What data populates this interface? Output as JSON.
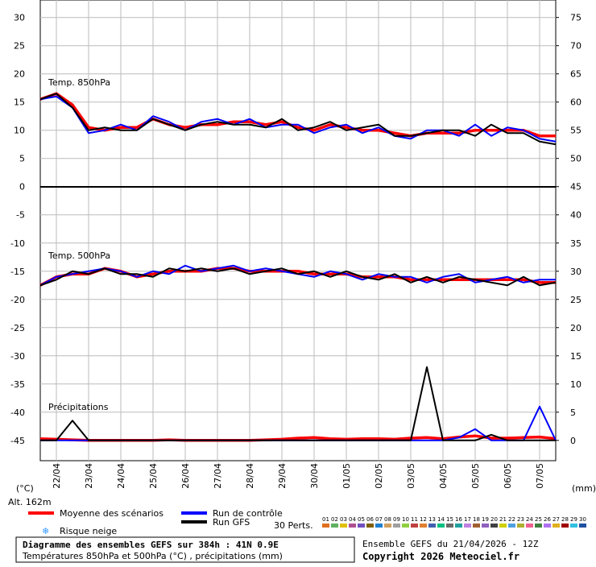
{
  "chart_data": {
    "type": "line",
    "x": [
      0,
      12,
      24,
      36,
      48,
      60,
      72,
      84,
      96,
      108,
      120,
      132,
      144,
      156,
      168,
      180,
      192,
      204,
      216,
      228,
      240,
      252,
      264,
      276,
      288,
      300,
      312,
      324,
      336,
      348,
      360,
      372,
      384
    ],
    "xlim": [
      0,
      384
    ],
    "xticks": [
      {
        "value": 12,
        "label": "22/04"
      },
      {
        "value": 36,
        "label": "23/04"
      },
      {
        "value": 60,
        "label": "24/04"
      },
      {
        "value": 84,
        "label": "25/04"
      },
      {
        "value": 108,
        "label": "26/04"
      },
      {
        "value": 132,
        "label": "27/04"
      },
      {
        "value": 156,
        "label": "28/04"
      },
      {
        "value": 180,
        "label": "29/04"
      },
      {
        "value": 204,
        "label": "30/04"
      },
      {
        "value": 228,
        "label": "01/05"
      },
      {
        "value": 252,
        "label": "02/05"
      },
      {
        "value": 276,
        "label": "03/05"
      },
      {
        "value": 300,
        "label": "04/05"
      },
      {
        "value": 324,
        "label": "05/05"
      },
      {
        "value": 348,
        "label": "06/05"
      },
      {
        "value": 372,
        "label": "07/05"
      }
    ],
    "ylim": [
      -48.6,
      33.1
    ],
    "yticks": [
      30,
      25,
      20,
      15,
      10,
      5,
      0,
      -5,
      -10,
      -15,
      -20,
      -25,
      -30,
      -35,
      -40,
      -45
    ],
    "y2lim": [
      -3.6,
      78.1
    ],
    "y2ticks": [
      75,
      70,
      65,
      60,
      55,
      50,
      45,
      40,
      35,
      30,
      25,
      20,
      15,
      10,
      5,
      0
    ],
    "grid": true,
    "y_unit": "(°C)",
    "y2_unit": "(mm)",
    "altitude": "Alt. 162m",
    "panels": [
      "Temp. 850hPa",
      "Temp. 500hPa",
      "Précipitations"
    ],
    "series": [
      {
        "name": "Moyenne des scénarios",
        "color": "#ff0000",
        "t850": [
          15.5,
          16.5,
          14.5,
          10.5,
          10,
          10.5,
          10.5,
          12,
          11,
          10.5,
          11,
          11,
          11.5,
          11.5,
          11,
          11.5,
          10.5,
          10,
          11,
          10.5,
          10,
          10,
          9.5,
          9,
          9.5,
          9.5,
          9.5,
          10,
          10,
          10,
          10,
          9,
          9
        ],
        "t500": [
          -17.5,
          -16,
          -15.5,
          -15.5,
          -14.5,
          -15,
          -16,
          -15.5,
          -15,
          -15,
          -15,
          -14.5,
          -14.5,
          -15,
          -15,
          -15,
          -15,
          -15.5,
          -15.5,
          -15.5,
          -16,
          -16,
          -16,
          -16.5,
          -16.5,
          -16.5,
          -16.5,
          -16.5,
          -16.5,
          -16.5,
          -16.5,
          -17,
          -17
        ],
        "precip": [
          0.3,
          0.2,
          0.1,
          0,
          0,
          0,
          0,
          0,
          0.1,
          0,
          0,
          0,
          0,
          0,
          0.1,
          0.2,
          0.4,
          0.5,
          0.3,
          0.2,
          0.3,
          0.3,
          0.2,
          0.4,
          0.5,
          0.3,
          0.6,
          0.8,
          0.4,
          0.4,
          0.5,
          0.6,
          0.3
        ]
      },
      {
        "name": "Run de contrôle",
        "color": "#0000ff",
        "t850": [
          15.5,
          16,
          14,
          9.5,
          10,
          11,
          10,
          12.5,
          11.5,
          10,
          11.5,
          12,
          11,
          12,
          10.5,
          11,
          11,
          9.5,
          10.5,
          11,
          9.5,
          10.5,
          9,
          8.5,
          10,
          10,
          9,
          11,
          9,
          10.5,
          10,
          8.5,
          8
        ],
        "t500": [
          -17.5,
          -16,
          -15.5,
          -15,
          -14.5,
          -15,
          -16,
          -15,
          -15.5,
          -14,
          -15,
          -14.5,
          -14,
          -15,
          -14.5,
          -15,
          -15.5,
          -16,
          -15,
          -15.5,
          -16.5,
          -15.5,
          -16,
          -16,
          -17,
          -16,
          -15.5,
          -17,
          -16.5,
          -16,
          -17,
          -16.5,
          -16.5
        ],
        "precip": [
          0,
          0,
          0,
          0,
          0,
          0,
          0,
          0,
          0,
          0,
          0,
          0,
          0,
          0,
          0,
          0,
          0,
          0,
          0,
          0,
          0,
          0,
          0,
          0,
          0,
          0,
          0.5,
          2,
          0,
          0,
          0,
          6,
          0
        ]
      },
      {
        "name": "Run GFS",
        "color": "#000000",
        "t850": [
          15.5,
          16.5,
          14,
          10,
          10.5,
          10,
          10,
          12,
          11,
          10,
          11,
          11.5,
          11,
          11,
          10.5,
          12,
          10,
          10.5,
          11.5,
          10,
          10.5,
          11,
          9,
          9,
          9.5,
          10,
          10,
          9,
          11,
          9.5,
          9.5,
          8,
          7.5
        ],
        "t500": [
          -17.5,
          -16.5,
          -15,
          -15.5,
          -14.5,
          -15.5,
          -15.5,
          -16,
          -14.5,
          -15,
          -14.5,
          -15,
          -14.5,
          -15.5,
          -15,
          -14.5,
          -15.5,
          -15,
          -16,
          -15,
          -16,
          -16.5,
          -15.5,
          -17,
          -16,
          -17,
          -16,
          -16.5,
          -17,
          -17.5,
          -16,
          -17.5,
          -17
        ],
        "precip": [
          0,
          0,
          3.5,
          0,
          0,
          0,
          0,
          0,
          0,
          0,
          0,
          0,
          0,
          0,
          0,
          0,
          0,
          0,
          0,
          0,
          0,
          0,
          0,
          0,
          13,
          0,
          0,
          0,
          1,
          0,
          0,
          0,
          0
        ]
      }
    ],
    "snow_label": "Risque neige",
    "perts_label": "30 Perts.",
    "perts": [
      {
        "label": "01",
        "color": "#e07020"
      },
      {
        "label": "02",
        "color": "#60b060"
      },
      {
        "label": "03",
        "color": "#e0c000"
      },
      {
        "label": "04",
        "color": "#b05090"
      },
      {
        "label": "05",
        "color": "#7050c0"
      },
      {
        "label": "06",
        "color": "#806000"
      },
      {
        "label": "07",
        "color": "#2080d0"
      },
      {
        "label": "08",
        "color": "#d0a060"
      },
      {
        "label": "09",
        "color": "#a0a0a0"
      },
      {
        "label": "10",
        "color": "#90d040"
      },
      {
        "label": "11",
        "color": "#c04040"
      },
      {
        "label": "12",
        "color": "#e08030"
      },
      {
        "label": "13",
        "color": "#4060b0"
      },
      {
        "label": "14",
        "color": "#00c080"
      },
      {
        "label": "15",
        "color": "#6a6a6a"
      },
      {
        "label": "16",
        "color": "#20a0a0"
      },
      {
        "label": "17",
        "color": "#c080e0"
      },
      {
        "label": "18",
        "color": "#a06030"
      },
      {
        "label": "19",
        "color": "#9060c0"
      },
      {
        "label": "20",
        "color": "#404040"
      },
      {
        "label": "21",
        "color": "#d0d000"
      },
      {
        "label": "22",
        "color": "#50a0e0"
      },
      {
        "label": "23",
        "color": "#b0b030"
      },
      {
        "label": "24",
        "color": "#f06090"
      },
      {
        "label": "25",
        "color": "#408040"
      },
      {
        "label": "26",
        "color": "#b070f0"
      },
      {
        "label": "27",
        "color": "#e0b020"
      },
      {
        "label": "28",
        "color": "#a00000"
      },
      {
        "label": "29",
        "color": "#30c0e0"
      },
      {
        "label": "30",
        "color": "#2050a0"
      }
    ]
  },
  "footer": {
    "title": "Diagramme des ensembles GEFS sur 384h : 41N 0.9E",
    "subtitle": "Températures 850hPa et 500hPa (°C) , précipitations (mm)",
    "run": "Ensemble GEFS du 21/04/2026 - 12Z",
    "copyright": "Copyright 2026 Meteociel.fr"
  }
}
